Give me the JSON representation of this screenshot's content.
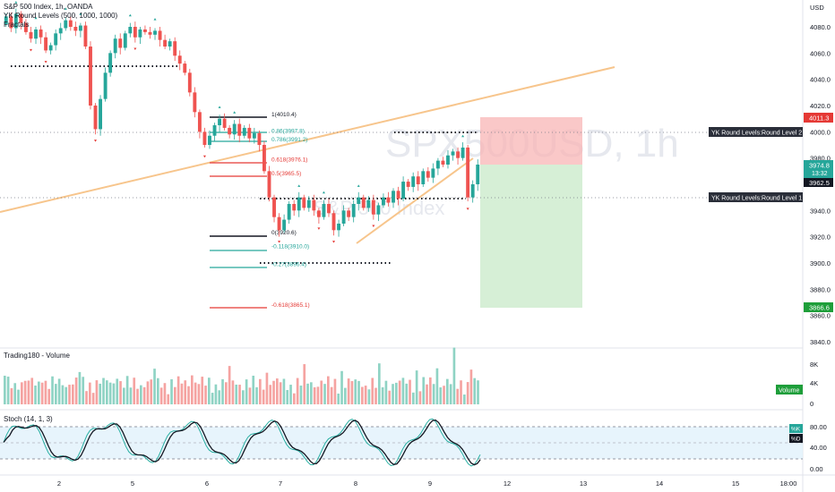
{
  "header": {
    "title": "S&P 500 Index, 1h, OANDA",
    "indicator1": "YK Round Levels (500, 1000, 1000)",
    "indicator2": "Fractals"
  },
  "watermark": {
    "symbol": "SPX500USD, 1h",
    "name": "S&P 500 Index"
  },
  "colors": {
    "up": "#26a69a",
    "down": "#ef5350",
    "trend": "#f7c58c",
    "risk": "#f8b6b6",
    "reward": "#c8e9c8",
    "fib_teal": "#26a69a",
    "fib_red": "#e53935",
    "stoch_k": "#2ab0a4",
    "stoch_d": "#131722",
    "volume_badge": "#1e9e3a"
  },
  "price_axis": {
    "unit": "USD",
    "ticks": [
      "4080.0",
      "4060.0",
      "4040.0",
      "4020.0",
      "4000.0",
      "3980.0",
      "3960.0",
      "3940.0",
      "3920.0",
      "3900.0",
      "3880.0",
      "3860.0",
      "3840.0"
    ],
    "range": [
      3840,
      4080
    ]
  },
  "badges": {
    "stop": "4011.3",
    "price": "3974.8",
    "countdown": "13:32",
    "entry": "3962.5",
    "target": "3866.6"
  },
  "round_levels": [
    {
      "label": "YK Round Levels:Round Level 2",
      "price": 4000
    },
    {
      "label": "YK Round Levels:Round Level 1",
      "price": 3950
    }
  ],
  "fib_labels": [
    {
      "text": "1(4010.4)",
      "price": 4010.4,
      "color": "dark"
    },
    {
      "text": "0.86(3997.8)",
      "price": 3997.8,
      "color": "teal"
    },
    {
      "text": "0.786(3991.2)",
      "price": 3991.2,
      "color": "teal"
    },
    {
      "text": "0.618(3976.1)",
      "price": 3976.1,
      "color": "red"
    },
    {
      "text": "0.5(3965.5)",
      "price": 3965.5,
      "color": "red"
    },
    {
      "text": "0(3920.6)",
      "price": 3920.6,
      "color": "dark"
    },
    {
      "text": "-0.118(3910.0)",
      "price": 3910.0,
      "color": "teal"
    },
    {
      "text": "-0.27(3896.4)",
      "price": 3896.4,
      "color": "teal"
    },
    {
      "text": "-0.618(3865.1)",
      "price": 3865.1,
      "color": "red"
    }
  ],
  "volume_panel": {
    "title": "Trading180 - Volume",
    "axis_ticks": [
      "8K",
      "4K",
      "0"
    ],
    "badge": "Volume"
  },
  "stoch_panel": {
    "title": "Stoch (14, 1, 3)",
    "axis_ticks": [
      "80.00",
      "40.00",
      "0.00"
    ],
    "badge_k": "%K",
    "badge_d": "%D",
    "band": [
      20,
      80
    ]
  },
  "time_axis": {
    "ticks": [
      "2",
      "5",
      "6",
      "7",
      "8",
      "9",
      "12",
      "13",
      "14",
      "15",
      "18:00"
    ]
  },
  "chart_data": {
    "type": "candlestick",
    "title": "S&P 500 Index, 1h, OANDA",
    "ylim": [
      3840,
      4080
    ],
    "close_path": [
      [
        4082,
        4088
      ],
      [
        4088,
        4079
      ],
      [
        4079,
        4090
      ],
      [
        4090,
        4083
      ],
      [
        4083,
        4076
      ],
      [
        4076,
        4071
      ],
      [
        4071,
        4078
      ],
      [
        4078,
        4072
      ],
      [
        4072,
        4062
      ],
      [
        4062,
        4066
      ],
      [
        4066,
        4075
      ],
      [
        4075,
        4079
      ],
      [
        4079,
        4085
      ],
      [
        4085,
        4080
      ],
      [
        4080,
        4077
      ],
      [
        4077,
        4081
      ],
      [
        4081,
        4065
      ],
      [
        4065,
        4020
      ],
      [
        4020,
        4002
      ],
      [
        4002,
        4025
      ],
      [
        4025,
        4045
      ],
      [
        4045,
        4060
      ],
      [
        4060,
        4071
      ],
      [
        4071,
        4064
      ],
      [
        4064,
        4075
      ],
      [
        4075,
        4080
      ],
      [
        4080,
        4072
      ],
      [
        4072,
        4078
      ],
      [
        4078,
        4076
      ],
      [
        4076,
        4074
      ],
      [
        4074,
        4077
      ],
      [
        4077,
        4070
      ],
      [
        4070,
        4065
      ],
      [
        4065,
        4069
      ],
      [
        4069,
        4058
      ],
      [
        4058,
        4052
      ],
      [
        4052,
        4045
      ],
      [
        4045,
        4030
      ],
      [
        4030,
        4015
      ],
      [
        4015,
        4000
      ],
      [
        4000,
        3990
      ],
      [
        3990,
        3997
      ],
      [
        3997,
        4005
      ],
      [
        4005,
        4010
      ],
      [
        4010,
        4003
      ],
      [
        4003,
        3998
      ],
      [
        3998,
        4006
      ],
      [
        4006,
        3997
      ],
      [
        3997,
        4003
      ],
      [
        4003,
        3995
      ],
      [
        3995,
        3999
      ],
      [
        3999,
        3990
      ],
      [
        3990,
        3970
      ],
      [
        3970,
        3950
      ],
      [
        3950,
        3935
      ],
      [
        3935,
        3925
      ],
      [
        3925,
        3933
      ],
      [
        3933,
        3945
      ],
      [
        3945,
        3940
      ],
      [
        3940,
        3950
      ],
      [
        3950,
        3942
      ],
      [
        3942,
        3948
      ],
      [
        3948,
        3940
      ],
      [
        3940,
        3935
      ],
      [
        3935,
        3945
      ],
      [
        3945,
        3938
      ],
      [
        3938,
        3925
      ],
      [
        3925,
        3930
      ],
      [
        3930,
        3940
      ],
      [
        3940,
        3935
      ],
      [
        3935,
        3945
      ],
      [
        3945,
        3950
      ],
      [
        3950,
        3942
      ],
      [
        3942,
        3948
      ],
      [
        3948,
        3937
      ],
      [
        3937,
        3944
      ],
      [
        3944,
        3950
      ],
      [
        3950,
        3946
      ],
      [
        3946,
        3955
      ],
      [
        3955,
        3949
      ],
      [
        3949,
        3962
      ],
      [
        3962,
        3958
      ],
      [
        3958,
        3966
      ],
      [
        3966,
        3960
      ],
      [
        3960,
        3970
      ],
      [
        3970,
        3965
      ],
      [
        3965,
        3972
      ],
      [
        3972,
        3978
      ],
      [
        3978,
        3975
      ],
      [
        3975,
        3982
      ],
      [
        3982,
        3985
      ],
      [
        3985,
        3980
      ],
      [
        3980,
        3988
      ],
      [
        3988,
        3950
      ],
      [
        3950,
        3960
      ],
      [
        3960,
        3975
      ]
    ]
  }
}
